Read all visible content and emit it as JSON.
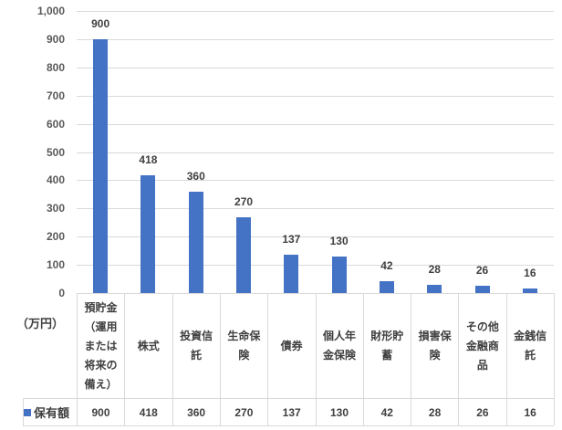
{
  "chart_data": {
    "type": "bar",
    "title": "",
    "xlabel": "",
    "ylabel": "（万円）",
    "ylim": [
      0,
      1000
    ],
    "yticks": [
      "0",
      "100",
      "200",
      "300",
      "400",
      "500",
      "600",
      "700",
      "800",
      "900",
      "1,000"
    ],
    "grid": true,
    "legend_position": "data-table",
    "categories": [
      "預貯金（運用または将来の備え）",
      "株式",
      "投資信託",
      "生命保険",
      "債券",
      "個人年金保険",
      "財形貯蓄",
      "損害保険",
      "その他金融商品",
      "金銭信託"
    ],
    "series": [
      {
        "name": "保有額",
        "color": "#4472c4",
        "values": [
          900,
          418,
          360,
          270,
          137,
          130,
          42,
          28,
          26,
          16
        ]
      }
    ],
    "data_table": true
  },
  "axis": {
    "unit_label": "（万円）",
    "ticks": [
      "1,000",
      "900",
      "800",
      "700",
      "600",
      "500",
      "400",
      "300",
      "200",
      "100",
      "0"
    ]
  },
  "table": {
    "legend_label": "保有額",
    "categories": [
      "預貯金（運用または将来の備え）",
      "株式",
      "投資信託",
      "生命保険",
      "債券",
      "個人年金保険",
      "財形貯蓄",
      "損害保険",
      "その他金融商品",
      "金銭信託"
    ],
    "values": [
      "900",
      "418",
      "360",
      "270",
      "137",
      "130",
      "42",
      "28",
      "26",
      "16"
    ]
  },
  "colors": {
    "bar": "#4472c4",
    "grid": "#d9d9d9"
  }
}
